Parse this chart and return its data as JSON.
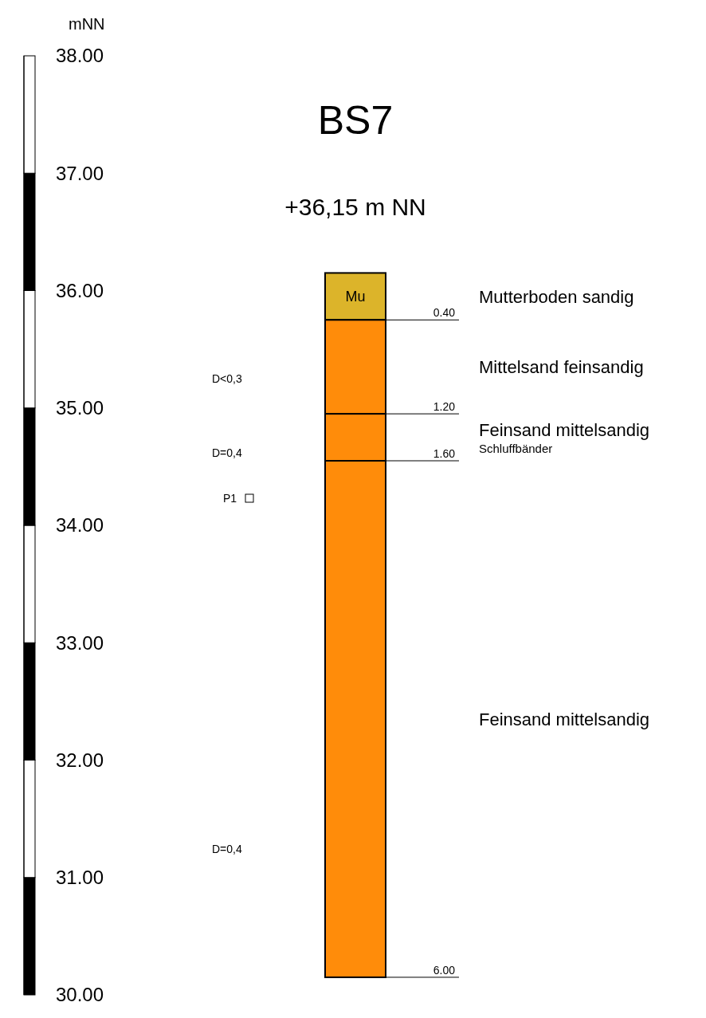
{
  "chart_data": {
    "type": "bar",
    "title": "BS7",
    "subtitle": "+36,15 m NN",
    "ylabel": "mNN",
    "categories": [
      null
    ],
    "series": [
      {
        "name": "Mutterboden sandig",
        "color": "#dcb42a",
        "base": [
          35.75
        ],
        "values": [
          0.4
        ]
      },
      {
        "name": "Mittelsand feinsandig",
        "color": "#ff8c0a",
        "base": [
          34.95
        ],
        "values": [
          0.8
        ]
      },
      {
        "name": "Feinsand mittelsandig",
        "color": "#ff8c0a",
        "base": [
          34.55
        ],
        "values": [
          0.4
        ]
      },
      {
        "name": "Feinsand mittelsandig",
        "color": "#ff8c0a",
        "base": [
          30.15
        ],
        "values": [
          4.4
        ]
      }
    ],
    "ylim": [
      30,
      38
    ],
    "yticks": [
      {
        "value": 30,
        "label": "30.00"
      },
      {
        "value": 31,
        "label": "31.00"
      },
      {
        "value": 32,
        "label": "32.00"
      },
      {
        "value": 33,
        "label": "33.00"
      },
      {
        "value": 34,
        "label": "34.00"
      },
      {
        "value": 35,
        "label": "35.00"
      },
      {
        "value": 36,
        "label": "36.00"
      },
      {
        "value": 37,
        "label": "37.00"
      },
      {
        "value": 38,
        "label": "38.00"
      }
    ],
    "annotations": [
      "Mu",
      "D<0,3",
      "D=0,4",
      "P1",
      "D=0,4",
      "Schluffbänder",
      "0.40",
      "1.20",
      "1.60",
      "6.00"
    ]
  }
}
